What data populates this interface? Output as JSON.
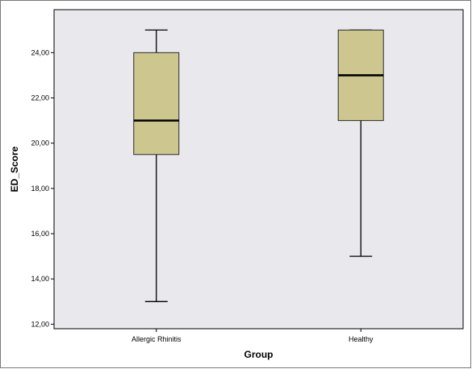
{
  "chart_data": {
    "type": "boxplot",
    "xlabel": "Group",
    "ylabel": "ED_Score",
    "ylim": [
      11.8,
      25.9
    ],
    "y_ticks": [
      "12,00",
      "14,00",
      "16,00",
      "18,00",
      "20,00",
      "22,00",
      "24,00"
    ],
    "y_tick_values": [
      12,
      14,
      16,
      18,
      20,
      22,
      24
    ],
    "categories": [
      "Allergic Rhinitis",
      "Healthy"
    ],
    "boxes": [
      {
        "category": "Allergic Rhinitis",
        "min": 13,
        "q1": 19.5,
        "median": 21,
        "q3": 24,
        "max": 25
      },
      {
        "category": "Healthy",
        "min": 15,
        "q1": 21,
        "median": 23,
        "q3": 25,
        "max": 25
      }
    ],
    "grid": false,
    "colors": {
      "plot_background": "#e8e8ed",
      "box_fill": "#cdc78f",
      "box_stroke": "#2a2a2a",
      "whisker": "#000000",
      "median": "#000000"
    }
  }
}
